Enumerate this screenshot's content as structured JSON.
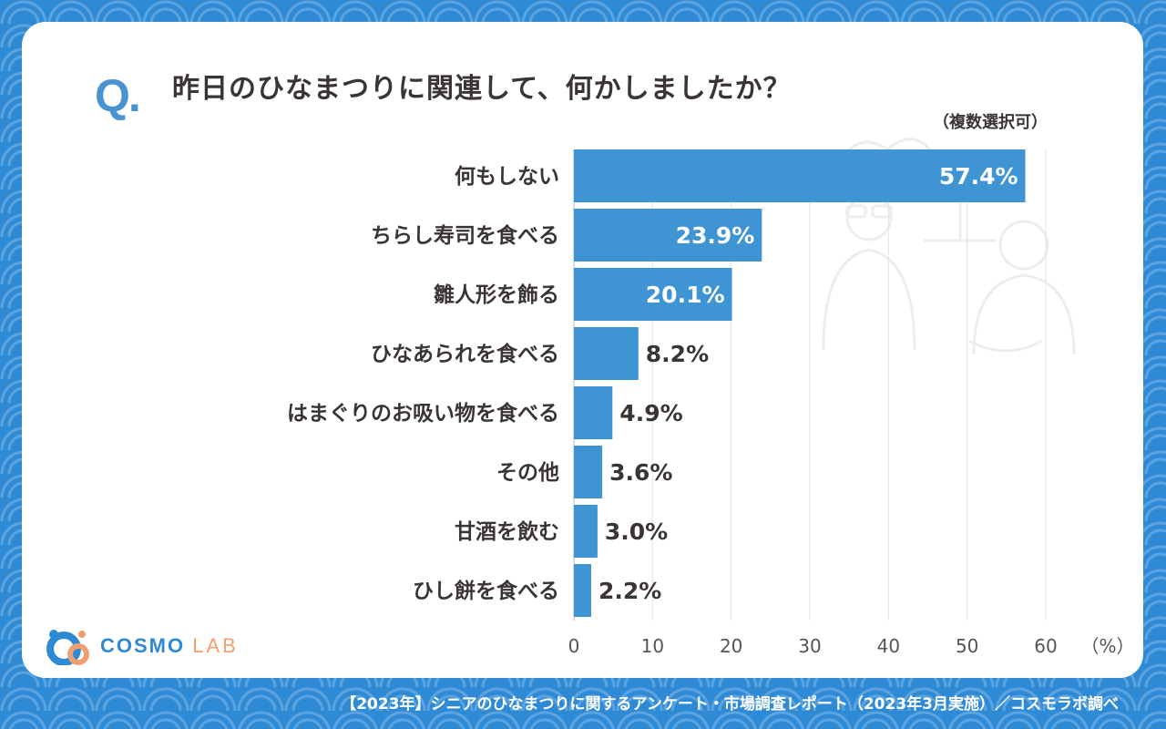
{
  "question": {
    "mark": "Q.",
    "title": "昨日のひなまつりに関連して、何かしましたか？",
    "note": "（複数選択可）"
  },
  "chart_data": {
    "type": "bar",
    "orientation": "horizontal",
    "categories": [
      "何もしない",
      "ちらし寿司を食べる",
      "雛人形を飾る",
      "ひなあられを食べる",
      "はまぐりのお吸い物を食べる",
      "その他",
      "甘酒を飲む",
      "ひし餅を食べる"
    ],
    "values": [
      57.4,
      23.9,
      20.1,
      8.2,
      4.9,
      3.6,
      3.0,
      2.2
    ],
    "value_labels": [
      "57.4%",
      "23.9%",
      "20.1%",
      "8.2%",
      "4.9%",
      "3.6%",
      "3.0%",
      "2.2%"
    ],
    "xlim": [
      0,
      60
    ],
    "ticks": [
      0,
      10,
      20,
      30,
      40,
      50,
      60
    ],
    "unit_label": "（%）",
    "bar_color": "#3f95d4",
    "grid": true
  },
  "logo": {
    "text_a": "COSMO",
    "text_b": "LAB"
  },
  "footer": "【2023年】シニアのひなまつりに関するアンケート・市場調査レポート（2023年3月実施）／コスモラボ調べ"
}
